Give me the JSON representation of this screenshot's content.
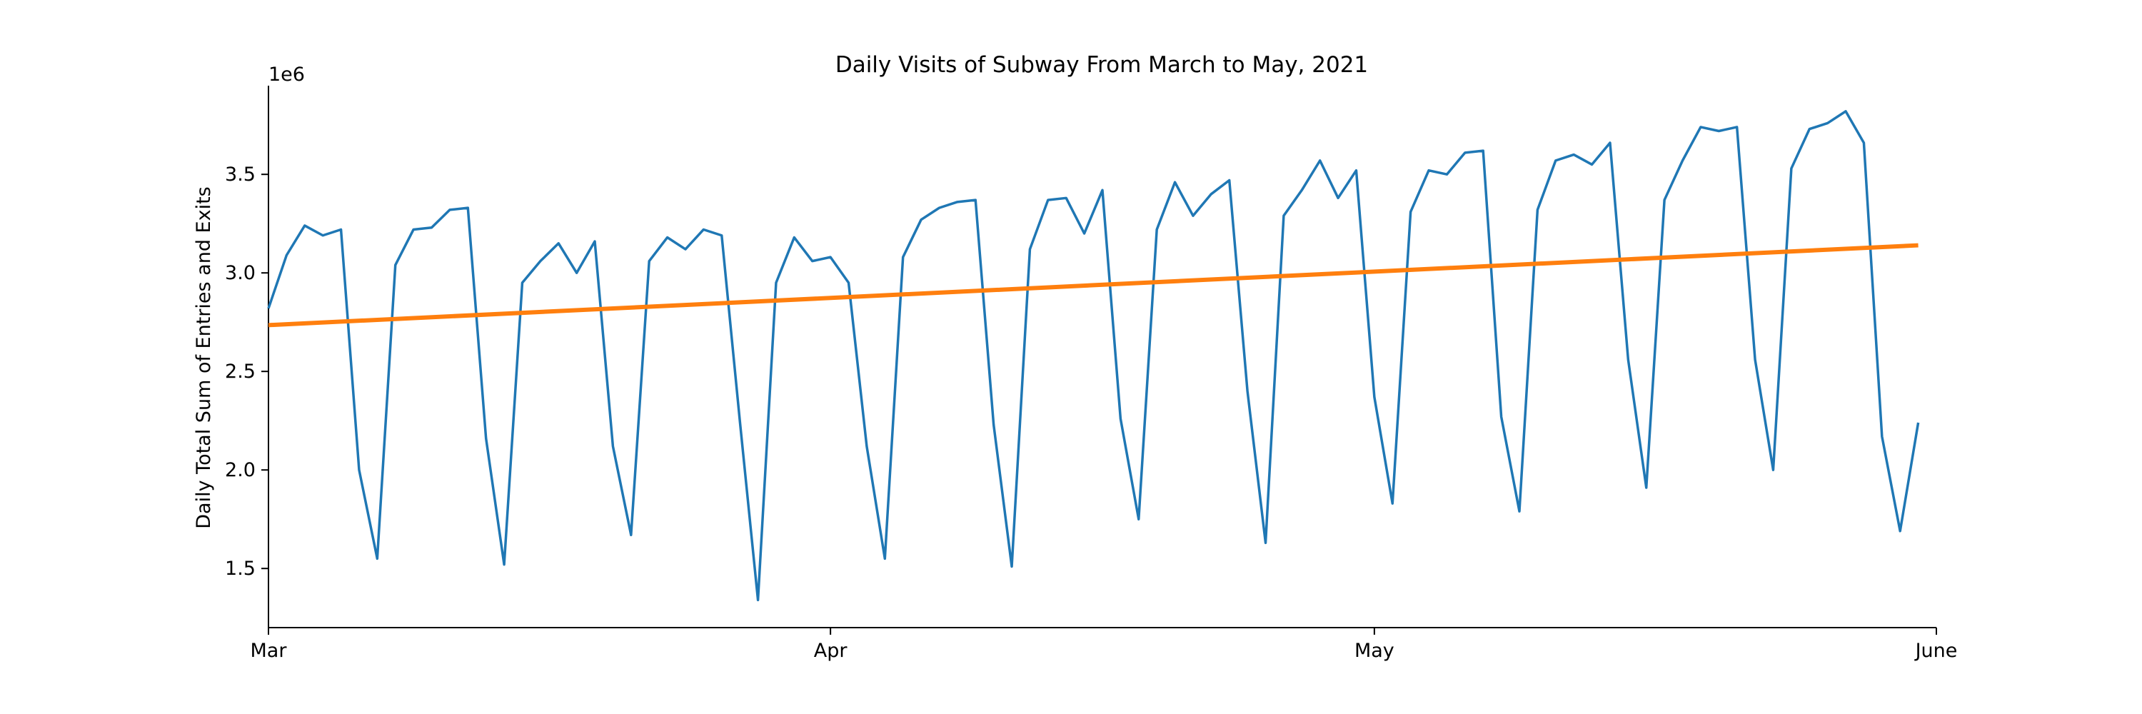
{
  "chart_data": {
    "type": "line",
    "title": "Daily Visits of Subway From March to May, 2021",
    "xlabel": "",
    "ylabel": "Daily Total Sum of Entries and Exits",
    "y_offset_label": "1e6",
    "x_range": [
      "2021-03-01",
      "2021-06-01"
    ],
    "ylim": [
      1.2,
      3.95
    ],
    "x_ticks": [
      {
        "date": "2021-03-01",
        "label": "Mar"
      },
      {
        "date": "2021-04-01",
        "label": "Apr"
      },
      {
        "date": "2021-05-01",
        "label": "May"
      },
      {
        "date": "2021-06-01",
        "label": "June"
      }
    ],
    "y_ticks": [
      1.5,
      2.0,
      2.5,
      3.0,
      3.5
    ],
    "y_tick_labels": [
      "1.5",
      "2.0",
      "2.5",
      "3.0",
      "3.5"
    ],
    "grid": false,
    "x_start_date": "2021-03-01",
    "series": [
      {
        "name": "",
        "color": "#1f77b4",
        "values": [
          2.82,
          3.09,
          3.24,
          3.19,
          3.22,
          2.0,
          1.55,
          3.04,
          3.22,
          3.23,
          3.32,
          3.33,
          2.16,
          1.52,
          2.95,
          3.06,
          3.15,
          3.0,
          3.16,
          2.12,
          1.67,
          3.06,
          3.18,
          3.12,
          3.22,
          3.19,
          2.25,
          1.34,
          2.95,
          3.18,
          3.06,
          3.08,
          2.95,
          2.12,
          1.55,
          3.08,
          3.27,
          3.33,
          3.36,
          3.37,
          2.23,
          1.51,
          3.12,
          3.37,
          3.38,
          3.2,
          3.42,
          2.26,
          1.75,
          3.22,
          3.46,
          3.29,
          3.4,
          3.47,
          2.4,
          1.63,
          3.29,
          3.42,
          3.57,
          3.38,
          3.52,
          2.37,
          1.83,
          3.31,
          3.52,
          3.5,
          3.61,
          3.62,
          2.27,
          1.79,
          3.32,
          3.57,
          3.6,
          3.55,
          3.66,
          2.56,
          1.91,
          3.37,
          3.57,
          3.74,
          3.72,
          3.74,
          2.56,
          2.0,
          3.53,
          3.73,
          3.76,
          3.82,
          3.66,
          2.17,
          1.69,
          2.24
        ]
      },
      {
        "name": "",
        "color": "#ff7f0e",
        "type": "trend",
        "start": 2.735,
        "end": 3.14
      }
    ]
  }
}
